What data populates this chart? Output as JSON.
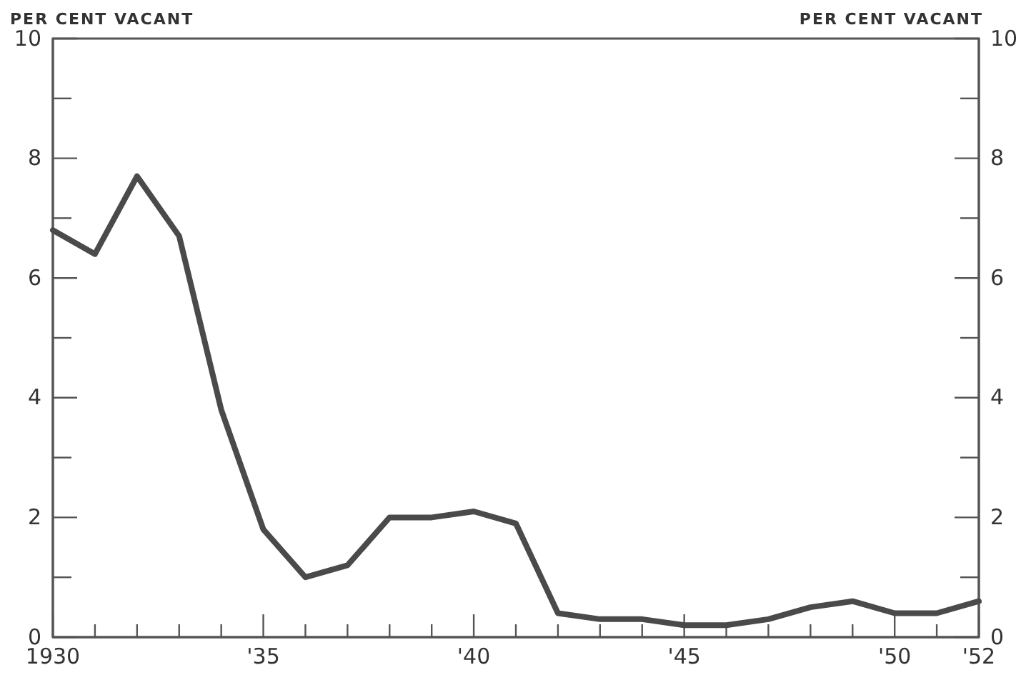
{
  "chart_data": {
    "type": "line",
    "ylabel": "PER CENT VACANT",
    "y2label": "PER CENT VACANT",
    "x": [
      1930,
      1931,
      1932,
      1933,
      1934,
      1935,
      1936,
      1937,
      1938,
      1939,
      1940,
      1941,
      1942,
      1943,
      1944,
      1945,
      1946,
      1947,
      1948,
      1949,
      1950,
      1951,
      1952
    ],
    "series": [
      {
        "color": "#4a4a4a",
        "values": [
          6.8,
          6.4,
          7.7,
          6.7,
          3.8,
          1.8,
          1.0,
          1.2,
          2.0,
          2.0,
          2.1,
          1.9,
          0.4,
          0.3,
          0.3,
          0.2,
          0.2,
          0.3,
          0.5,
          0.6,
          0.4,
          0.4,
          0.6
        ]
      }
    ],
    "xlim": [
      1930,
      1952
    ],
    "xticks": [
      {
        "value": 1930,
        "label": "1930"
      },
      {
        "value": 1931,
        "label": null
      },
      {
        "value": 1932,
        "label": null
      },
      {
        "value": 1933,
        "label": null
      },
      {
        "value": 1934,
        "label": null
      },
      {
        "value": 1935,
        "label": "'35"
      },
      {
        "value": 1936,
        "label": null
      },
      {
        "value": 1937,
        "label": null
      },
      {
        "value": 1938,
        "label": null
      },
      {
        "value": 1939,
        "label": null
      },
      {
        "value": 1940,
        "label": "'40"
      },
      {
        "value": 1941,
        "label": null
      },
      {
        "value": 1942,
        "label": null
      },
      {
        "value": 1943,
        "label": null
      },
      {
        "value": 1944,
        "label": null
      },
      {
        "value": 1945,
        "label": "'45"
      },
      {
        "value": 1946,
        "label": null
      },
      {
        "value": 1947,
        "label": null
      },
      {
        "value": 1948,
        "label": null
      },
      {
        "value": 1949,
        "label": null
      },
      {
        "value": 1950,
        "label": "'50"
      },
      {
        "value": 1951,
        "label": null
      },
      {
        "value": 1952,
        "label": "'52"
      }
    ],
    "ylim": [
      0,
      10
    ],
    "yticks": [
      0,
      {
        "value": 1,
        "label": null
      },
      2,
      {
        "value": 3,
        "label": null
      },
      4,
      {
        "value": 5,
        "label": null
      },
      6,
      {
        "value": 7,
        "label": null
      },
      8,
      {
        "value": 9,
        "label": null
      },
      10
    ],
    "y2lim": [
      0,
      10
    ],
    "y2ticks": [
      0,
      {
        "value": 1,
        "label": null
      },
      2,
      {
        "value": 3,
        "label": null
      },
      4,
      {
        "value": 5,
        "label": null
      },
      6,
      {
        "value": 7,
        "label": null
      },
      8,
      {
        "value": 9,
        "label": null
      },
      10
    ],
    "grid": false,
    "marker": "none",
    "line_style": "solid"
  }
}
